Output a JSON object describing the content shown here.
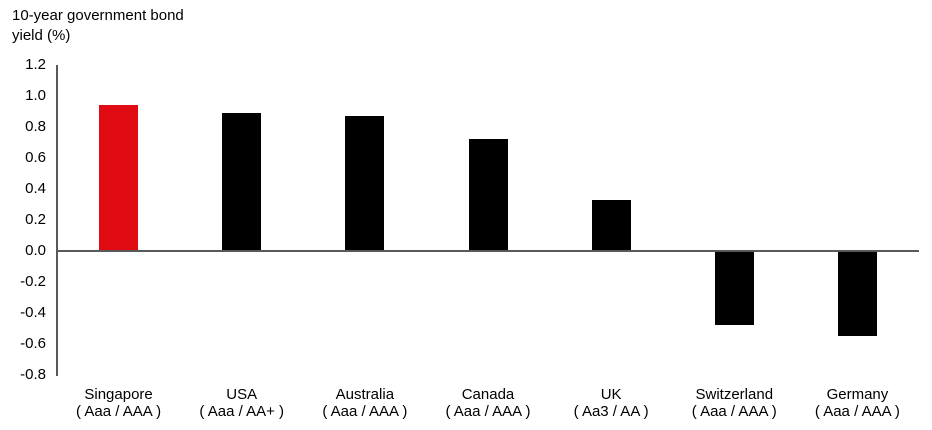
{
  "chart_data": {
    "type": "bar",
    "title": "10-year government bond yield (%)",
    "title_lines": [
      "10-year government bond",
      "yield (%)"
    ],
    "categories": [
      "Singapore",
      "USA",
      "Australia",
      "Canada",
      "UK",
      "Switzerland",
      "Germany"
    ],
    "ratings": [
      "( Aaa / AAA )",
      "( Aaa / AA+ )",
      "( Aaa / AAA )",
      "( Aaa / AAA )",
      "( Aa3 / AA )",
      "( Aaa / AAA )",
      "( Aaa / AAA )"
    ],
    "values": [
      0.94,
      0.89,
      0.87,
      0.72,
      0.33,
      -0.48,
      -0.55
    ],
    "xlabel": "",
    "ylabel": "10-year government bond yield (%)",
    "ylim": [
      -0.8,
      1.2
    ],
    "y_tick_step": 0.2,
    "y_tick_labels": [
      "1.2",
      "1.0",
      "0.8",
      "0.6",
      "0.4",
      "0.2",
      "0.0",
      "-0.2",
      "-0.4",
      "-0.6",
      "-0.8"
    ],
    "y_tick_values": [
      1.2,
      1.0,
      0.8,
      0.6,
      0.4,
      0.2,
      0.0,
      -0.2,
      -0.4,
      -0.6,
      -0.8
    ],
    "grid": false,
    "legend": "none",
    "bar_color": "#000000",
    "highlight_index": 0,
    "highlight_color": "#e00b12",
    "axis_color": "#58595b",
    "text_color": "#000000",
    "background_color": "#ffffff"
  }
}
